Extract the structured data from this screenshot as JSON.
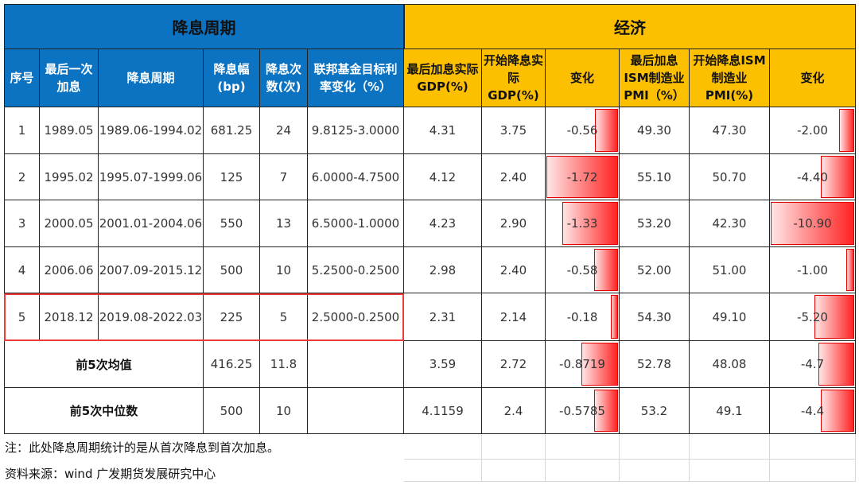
{
  "groups": {
    "rate_cut": "降息周期",
    "economy": "经济"
  },
  "headers": {
    "seq": "序号",
    "last_hike": "最后一次加息",
    "cut_period": "降息周期",
    "cut_bp": "降息幅(bp)",
    "cut_count": "降息次数(次)",
    "ffr_change": "联邦基金目标利率变化（%）",
    "gdp_last": "最后加息实际GDP(%)",
    "gdp_start": "开始降息实际GDP(%)",
    "gdp_change": "变化",
    "pmi_last": "最后加息ISM制造业PMI（%）",
    "pmi_start": "开始降息ISM制造业PMI(%)",
    "pmi_change": "变化"
  },
  "rows": [
    {
      "seq": "1",
      "last_hike": "1989.05",
      "period": "1989.06-1994.02",
      "bp": "681.25",
      "count": "24",
      "ffr": "9.8125-3.0000",
      "gdp_last": "4.31",
      "gdp_start": "3.75",
      "gdp_change": "-0.56",
      "pmi_last": "49.30",
      "pmi_start": "47.30",
      "pmi_change": "-2.00"
    },
    {
      "seq": "2",
      "last_hike": "1995.02",
      "period": "1995.07-1999.06",
      "bp": "125",
      "count": "7",
      "ffr": "6.0000-4.7500",
      "gdp_last": "4.12",
      "gdp_start": "2.40",
      "gdp_change": "-1.72",
      "pmi_last": "55.10",
      "pmi_start": "50.70",
      "pmi_change": "-4.40"
    },
    {
      "seq": "3",
      "last_hike": "2000.05",
      "period": "2001.01-2004.06",
      "bp": "550",
      "count": "13",
      "ffr": "6.5000-1.0000",
      "gdp_last": "4.23",
      "gdp_start": "2.90",
      "gdp_change": "-1.33",
      "pmi_last": "53.20",
      "pmi_start": "42.30",
      "pmi_change": "-10.90"
    },
    {
      "seq": "4",
      "last_hike": "2006.06",
      "period": "2007.09-2015.12",
      "bp": "500",
      "count": "10",
      "ffr": "5.2500-0.2500",
      "gdp_last": "2.98",
      "gdp_start": "2.40",
      "gdp_change": "-0.58",
      "pmi_last": "52.00",
      "pmi_start": "51.00",
      "pmi_change": "-1.00"
    },
    {
      "seq": "5",
      "last_hike": "2018.12",
      "period": "2019.08-2022.03",
      "bp": "225",
      "count": "5",
      "ffr": "2.5000-0.2500",
      "gdp_last": "2.31",
      "gdp_start": "2.14",
      "gdp_change": "-0.18",
      "pmi_last": "54.30",
      "pmi_start": "49.10",
      "pmi_change": "-5.20"
    }
  ],
  "summary": [
    {
      "label": "前5次均值",
      "bp": "416.25",
      "count": "11.8",
      "gdp_last": "3.59",
      "gdp_start": "2.72",
      "gdp_change": "-0.8719",
      "pmi_last": "52.78",
      "pmi_start": "48.08",
      "pmi_change": "-4.7"
    },
    {
      "label": "前5次中位数",
      "bp": "500",
      "count": "10",
      "gdp_last": "4.1159",
      "gdp_start": "2.4",
      "gdp_change": "-0.5785",
      "pmi_last": "53.2",
      "pmi_start": "49.1",
      "pmi_change": "-4.4"
    }
  ],
  "data_bar_colors": {
    "fill_end": "#ff2222",
    "fill_start": "#ffe5e5",
    "border": "#e00000"
  },
  "colors": {
    "blue_header": "#0c73c2",
    "gold_header": "#fcc000",
    "highlight_border": "#ef3a3a"
  },
  "notes": {
    "note": "注：此处降息周期统计的是从首次降息到首次加息。",
    "source": "资料来源：wind 广发期货发展研究中心"
  }
}
